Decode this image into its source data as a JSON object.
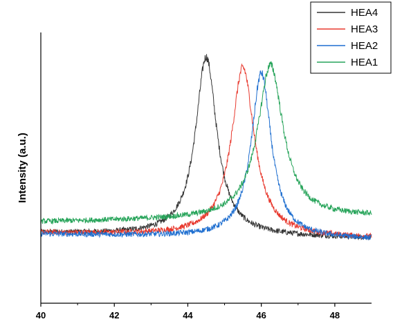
{
  "chart_data": {
    "type": "line",
    "title": "",
    "xlabel": "",
    "ylabel": "Intensity (a.u.)",
    "xlim": [
      40,
      49
    ],
    "ylim": [
      0,
      1
    ],
    "xticks": [
      "40",
      "42",
      "44",
      "46",
      "48"
    ],
    "grid": false,
    "legend_position": "top-right",
    "series": [
      {
        "name": "HEA4",
        "color": "#333333",
        "center": 44.5,
        "peak": 0.91,
        "baseline_left": 0.26,
        "baseline_right": 0.24,
        "width": 0.35
      },
      {
        "name": "HEA3",
        "color": "#e8392e",
        "center": 45.5,
        "peak": 0.87,
        "baseline_left": 0.26,
        "baseline_right": 0.24,
        "width": 0.38
      },
      {
        "name": "HEA2",
        "color": "#1f6fd0",
        "center": 46.0,
        "peak": 0.85,
        "baseline_left": 0.255,
        "baseline_right": 0.235,
        "width": 0.33
      },
      {
        "name": "HEA1",
        "color": "#27a45a",
        "center": 46.25,
        "peak": 0.88,
        "baseline_left": 0.3,
        "baseline_right": 0.32,
        "width": 0.42
      }
    ]
  }
}
